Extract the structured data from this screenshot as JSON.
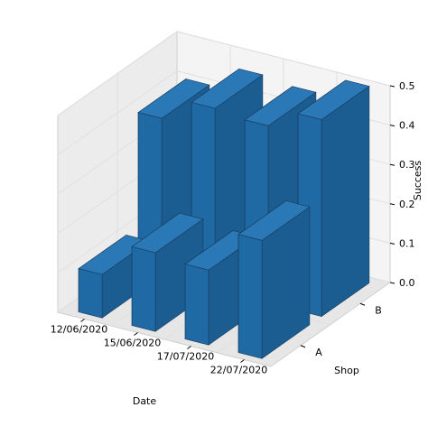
{
  "chart_data": {
    "type": "bar",
    "projection": "3d",
    "categories": [
      "12/06/2020",
      "15/06/2020",
      "17/07/2020",
      "22/07/2020"
    ],
    "shops": [
      "A",
      "B"
    ],
    "series": [
      {
        "name": "A",
        "values": [
          0.11,
          0.2,
          0.19,
          0.3
        ]
      },
      {
        "name": "B",
        "values": [
          0.4,
          0.46,
          0.45,
          0.5
        ]
      }
    ],
    "xlabel": "Date",
    "ylabel": "Shop",
    "zlabel": "Success",
    "zlim": [
      0,
      0.5
    ],
    "z_ticks": [
      "0.0",
      "0.1",
      "0.2",
      "0.3",
      "0.4",
      "0.5"
    ],
    "grid": true,
    "colors": {
      "bar": "#1f6aa5",
      "bar_edge": "#1a3a5c",
      "pane": "#f2f2f2",
      "grid": "#e0e0e0",
      "pane_edge": "#c8c8c8"
    }
  }
}
